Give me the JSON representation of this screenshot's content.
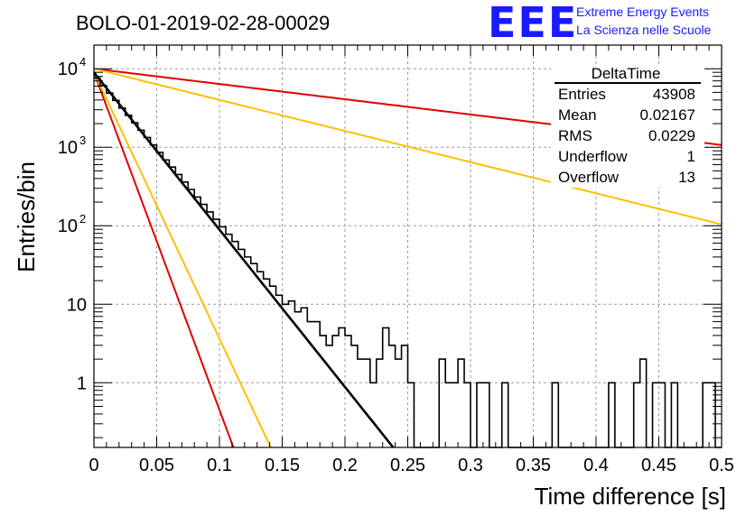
{
  "chart_data": {
    "type": "histogram",
    "title": "BOLO-01-2019-02-28-00029",
    "xlabel": "Time difference [s]",
    "ylabel": "Entries/bin",
    "xlim": [
      0,
      0.5
    ],
    "ylim": [
      0.15,
      20000
    ],
    "y_scale": "log",
    "grid": true,
    "x_ticks": [
      {
        "value": 0,
        "label": "0"
      },
      {
        "value": 0.05,
        "label": "0.05"
      },
      {
        "value": 0.1,
        "label": "0.1"
      },
      {
        "value": 0.15,
        "label": "0.15"
      },
      {
        "value": 0.2,
        "label": "0.2"
      },
      {
        "value": 0.25,
        "label": "0.25"
      },
      {
        "value": 0.3,
        "label": "0.3"
      },
      {
        "value": 0.35,
        "label": "0.35"
      },
      {
        "value": 0.4,
        "label": "0.4"
      },
      {
        "value": 0.45,
        "label": "0.45"
      },
      {
        "value": 0.5,
        "label": "0.5"
      }
    ],
    "y_ticks": [
      {
        "value": 1,
        "label": "1"
      },
      {
        "value": 10,
        "label": "10"
      },
      {
        "value": 100,
        "label": "10",
        "sup": "2"
      },
      {
        "value": 1000,
        "label": "10",
        "sup": "3"
      },
      {
        "value": 10000,
        "label": "10",
        "sup": "4"
      }
    ],
    "histogram": {
      "bin_width": 0.005,
      "color": "#000000",
      "values": [
        7600,
        6100,
        4900,
        3950,
        3150,
        2550,
        2050,
        1650,
        1330,
        1070,
        860,
        690,
        560,
        450,
        360,
        290,
        232,
        187,
        150,
        121,
        97,
        78,
        63,
        50,
        40,
        33,
        26,
        21,
        17,
        13,
        10,
        11,
        8,
        9,
        6,
        6,
        4,
        3,
        4,
        5,
        4,
        3,
        2,
        2,
        1,
        2,
        5,
        3,
        2,
        3,
        1,
        0,
        0,
        0,
        0,
        2,
        1,
        1,
        2,
        1,
        0,
        1,
        1,
        0,
        0,
        1,
        0,
        0,
        0,
        0,
        0,
        0,
        0,
        1,
        0,
        0,
        0,
        0,
        0,
        0,
        0,
        0,
        1,
        0,
        0,
        0,
        1,
        2,
        0,
        1,
        1,
        0,
        1,
        0,
        0,
        0,
        0,
        1,
        1,
        0
      ]
    },
    "series": [
      {
        "color": "#000000",
        "x_range": [
          0,
          0.24
        ],
        "y0": 9000,
        "tau": 0.02167
      },
      {
        "color": "#e00000",
        "x_range": [
          0,
          0.112
        ],
        "y0": 9000,
        "tau": 0.0101
      },
      {
        "color": "#ffc000",
        "x_range": [
          0,
          0.142
        ],
        "y0": 9000,
        "tau": 0.0128
      },
      {
        "color": "#e00000",
        "x_range": [
          0,
          0.5
        ],
        "y0": 10000,
        "tau": 0.2235
      },
      {
        "color": "#ffc000",
        "x_range": [
          0,
          0.5
        ],
        "y0": 10000,
        "tau": 0.1095
      }
    ],
    "stats_box": {
      "name": "DeltaTime",
      "rows": [
        {
          "label": "Entries",
          "value": "43908"
        },
        {
          "label": "Mean",
          "value": "0.02167"
        },
        {
          "label": "RMS",
          "value": "0.0229"
        },
        {
          "label": "Underflow",
          "value": "1"
        },
        {
          "label": "Overflow",
          "value": "13"
        }
      ]
    }
  },
  "logo": {
    "text": "EEE",
    "line1": "Extreme Energy Events",
    "line2": "La Scienza nelle Scuole",
    "color": "#1a1aff"
  }
}
